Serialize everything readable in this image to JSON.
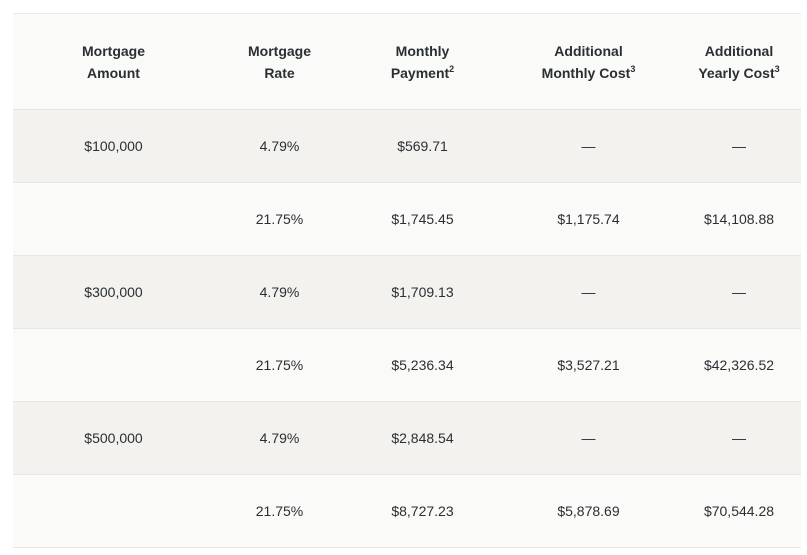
{
  "table": {
    "headers": [
      {
        "line1": "Mortgage",
        "line2": "Amount",
        "sup": ""
      },
      {
        "line1": "Mortgage",
        "line2": "Rate",
        "sup": ""
      },
      {
        "line1": "Monthly",
        "line2": "Payment",
        "sup": "2"
      },
      {
        "line1": "Additional",
        "line2": "Monthly Cost",
        "sup": "3"
      },
      {
        "line1": "Additional",
        "line2": "Yearly Cost",
        "sup": "3"
      }
    ],
    "rows": [
      {
        "amount": "$100,000",
        "rate": "4.79%",
        "payment": "$569.71",
        "add_monthly": "—",
        "add_yearly": "—"
      },
      {
        "amount": "",
        "rate": "21.75%",
        "payment": "$1,745.45",
        "add_monthly": "$1,175.74",
        "add_yearly": "$14,108.88"
      },
      {
        "amount": "$300,000",
        "rate": "4.79%",
        "payment": "$1,709.13",
        "add_monthly": "—",
        "add_yearly": "—"
      },
      {
        "amount": "",
        "rate": "21.75%",
        "payment": "$5,236.34",
        "add_monthly": "$3,527.21",
        "add_yearly": "$42,326.52"
      },
      {
        "amount": "$500,000",
        "rate": "4.79%",
        "payment": "$2,848.54",
        "add_monthly": "—",
        "add_yearly": "—"
      },
      {
        "amount": "",
        "rate": "21.75%",
        "payment": "$8,727.23",
        "add_monthly": "$5,878.69",
        "add_yearly": "$70,544.28"
      }
    ]
  }
}
